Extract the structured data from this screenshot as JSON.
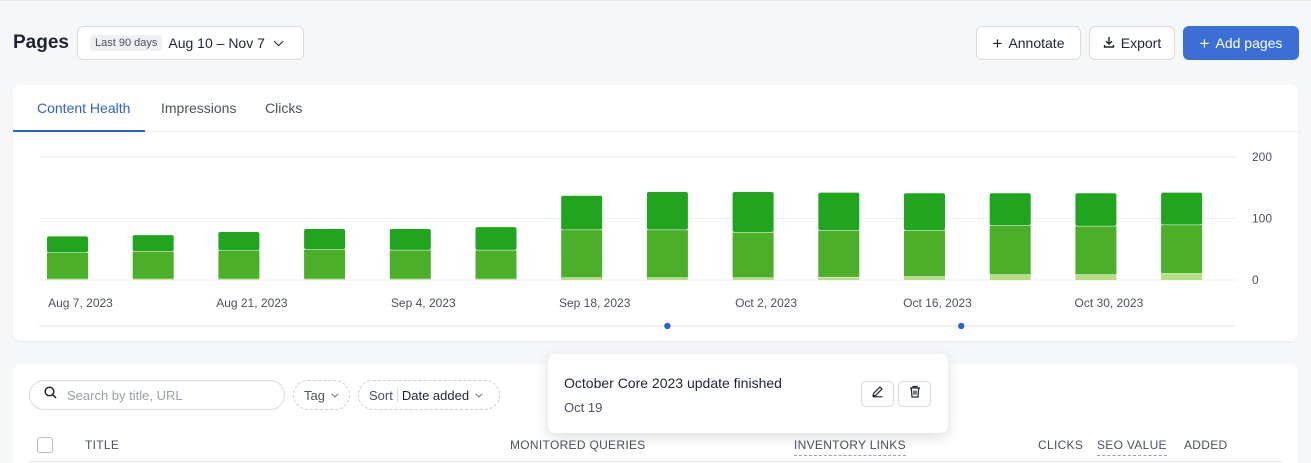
{
  "header": {
    "title": "Pages",
    "date_range": {
      "badge": "Last 90 days",
      "value": "Aug 10 – Nov 7"
    },
    "annotate_label": "Annotate",
    "export_label": "Export",
    "add_pages_label": "Add pages"
  },
  "chart_card": {
    "tabs": [
      {
        "label": "Content Health",
        "active": true
      },
      {
        "label": "Impressions",
        "active": false
      },
      {
        "label": "Clicks",
        "active": false
      }
    ]
  },
  "chart_data": {
    "type": "bar",
    "stacked": true,
    "categories": [
      "Aug 7, 2023",
      "Aug 14, 2023",
      "Aug 21, 2023",
      "Aug 28, 2023",
      "Sep 4, 2023",
      "Sep 11, 2023",
      "Sep 18, 2023",
      "Sep 25, 2023",
      "Oct 2, 2023",
      "Oct 9, 2023",
      "Oct 16, 2023",
      "Oct 23, 2023",
      "Oct 30, 2023",
      "Nov 6, 2023"
    ],
    "x_tick_labels": [
      "Aug 7, 2023",
      "Aug 21, 2023",
      "Sep 4, 2023",
      "Sep 18, 2023",
      "Oct 2, 2023",
      "Oct 16, 2023",
      "Oct 30, 2023"
    ],
    "series": [
      {
        "color": "#b7dd85",
        "values": [
          2,
          2,
          2,
          2,
          2,
          2,
          4,
          4,
          4,
          5,
          6,
          9,
          9,
          11
        ]
      },
      {
        "color": "#4caf2a",
        "values": [
          43,
          45,
          46,
          48,
          47,
          47,
          78,
          78,
          74,
          76,
          75,
          80,
          79,
          79
        ]
      },
      {
        "color": "#21a51f",
        "values": [
          26,
          26,
          30,
          33,
          34,
          37,
          55,
          61,
          65,
          61,
          60,
          52,
          53,
          52
        ]
      }
    ],
    "y_ticks": [
      0,
      100,
      200
    ],
    "ylim": [
      0,
      200
    ],
    "grid": true,
    "annotation_markers": [
      "Sep 25, 2023",
      "Oct 19, 2023"
    ],
    "marker_color": "#2f62c9"
  },
  "toolbar": {
    "search_placeholder": "Search by title, URL",
    "tag_label": "Tag",
    "sort_label": "Sort",
    "sort_value": "Date added"
  },
  "table": {
    "columns": [
      "TITLE",
      "MONITORED QUERIES",
      "INVENTORY LINKS",
      "CLICKS",
      "SEO VALUE",
      "ADDED"
    ]
  },
  "popover": {
    "title": "October Core 2023 update finished",
    "date": "Oct 19"
  }
}
